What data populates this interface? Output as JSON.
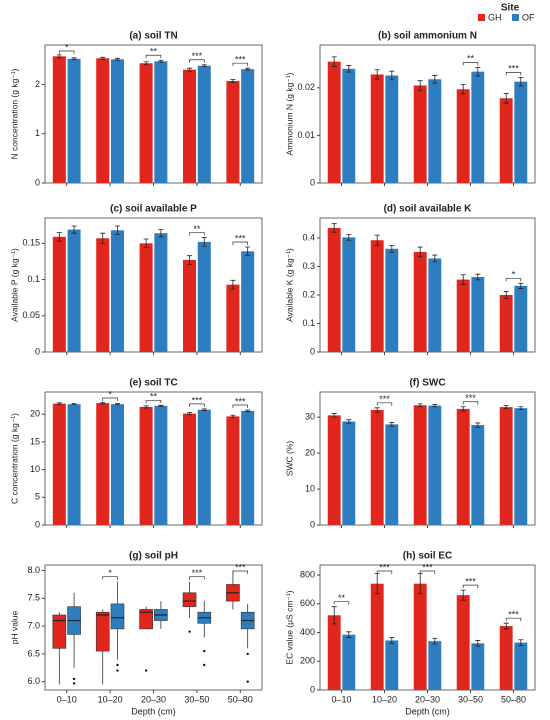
{
  "legend": {
    "title": "Site",
    "series": [
      {
        "name": "GH",
        "color": "#e0261d"
      },
      {
        "name": "OF",
        "color": "#2e7ebf"
      }
    ]
  },
  "categories": [
    "0–10",
    "10–20",
    "20–30",
    "30–50",
    "50–80"
  ],
  "xlabel": "Depth (cm)",
  "chart_data": [
    {
      "type": "bar",
      "title": "(a) soil TN",
      "ylabel": "N concentration (g kg⁻¹)",
      "ylim": [
        0,
        2.8
      ],
      "yticks": [
        0,
        1,
        2
      ],
      "series": [
        {
          "values": [
            2.57,
            2.53,
            2.43,
            2.3,
            2.07
          ],
          "errors": [
            0.03,
            0.02,
            0.03,
            0.03,
            0.03
          ]
        },
        {
          "values": [
            2.52,
            2.51,
            2.47,
            2.38,
            2.31
          ],
          "errors": [
            0.02,
            0.02,
            0.02,
            0.02,
            0.02
          ]
        }
      ],
      "annotations": [
        {
          "category": 0,
          "text": "*"
        },
        {
          "category": 2,
          "text": "**"
        },
        {
          "category": 3,
          "text": "***"
        },
        {
          "category": 4,
          "text": "***"
        }
      ]
    },
    {
      "type": "bar",
      "title": "(b) soil ammonium N",
      "ylabel": "Ammonium N (g kg⁻¹)",
      "ylim": [
        0,
        0.029
      ],
      "yticks": [
        0,
        0.01,
        0.02
      ],
      "series": [
        {
          "values": [
            0.0255,
            0.0228,
            0.0205,
            0.0197,
            0.0178
          ],
          "errors": [
            0.001,
            0.001,
            0.001,
            0.001,
            0.001
          ]
        },
        {
          "values": [
            0.024,
            0.0226,
            0.0218,
            0.0234,
            0.0213
          ],
          "errors": [
            0.0007,
            0.0009,
            0.0008,
            0.0009,
            0.0009
          ]
        }
      ],
      "annotations": [
        {
          "category": 3,
          "text": "**"
        },
        {
          "category": 4,
          "text": "***"
        }
      ]
    },
    {
      "type": "bar",
      "title": "(c) soil available P",
      "ylabel": "Available P (g kg⁻¹)",
      "ylim": [
        0,
        0.185
      ],
      "yticks": [
        0,
        0.05,
        0.1,
        0.15
      ],
      "series": [
        {
          "values": [
            0.159,
            0.157,
            0.15,
            0.127,
            0.093
          ],
          "errors": [
            0.006,
            0.007,
            0.006,
            0.006,
            0.006
          ]
        },
        {
          "values": [
            0.169,
            0.168,
            0.164,
            0.152,
            0.139
          ],
          "errors": [
            0.005,
            0.006,
            0.005,
            0.006,
            0.006
          ]
        }
      ],
      "annotations": [
        {
          "category": 3,
          "text": "**"
        },
        {
          "category": 4,
          "text": "***"
        }
      ]
    },
    {
      "type": "bar",
      "title": "(d) soil available K",
      "ylabel": "Available K (g kg⁻¹)",
      "ylim": [
        0,
        0.47
      ],
      "yticks": [
        0,
        0.1,
        0.2,
        0.3,
        0.4
      ],
      "series": [
        {
          "values": [
            0.435,
            0.392,
            0.351,
            0.254,
            0.2
          ],
          "errors": [
            0.015,
            0.018,
            0.017,
            0.017,
            0.012
          ]
        },
        {
          "values": [
            0.402,
            0.362,
            0.328,
            0.263,
            0.232
          ],
          "errors": [
            0.01,
            0.012,
            0.012,
            0.01,
            0.009
          ]
        }
      ],
      "annotations": [
        {
          "category": 4,
          "text": "*"
        }
      ]
    },
    {
      "type": "bar",
      "title": "(e) soil TC",
      "ylabel": "C concentration (g kg⁻¹)",
      "ylim": [
        0,
        24
      ],
      "yticks": [
        0,
        5,
        10,
        15,
        20
      ],
      "series": [
        {
          "values": [
            21.9,
            22.0,
            21.3,
            20.1,
            19.6
          ],
          "errors": [
            0.15,
            0.15,
            0.2,
            0.2,
            0.2
          ]
        },
        {
          "values": [
            21.8,
            21.8,
            21.5,
            20.8,
            20.6
          ],
          "errors": [
            0.1,
            0.1,
            0.1,
            0.15,
            0.15
          ]
        }
      ],
      "annotations": [
        {
          "category": 1,
          "text": "*"
        },
        {
          "category": 2,
          "text": "**"
        },
        {
          "category": 3,
          "text": "***"
        },
        {
          "category": 4,
          "text": "***"
        }
      ]
    },
    {
      "type": "bar",
      "title": "(f) SWC",
      "ylabel": "SWC (%)",
      "ylim": [
        0,
        37
      ],
      "yticks": [
        0,
        10,
        20,
        30
      ],
      "series": [
        {
          "values": [
            30.5,
            32.0,
            33.3,
            32.3,
            32.8
          ],
          "errors": [
            0.5,
            0.6,
            0.4,
            0.6,
            0.4
          ]
        },
        {
          "values": [
            28.8,
            28.0,
            33.2,
            27.8,
            32.5
          ],
          "errors": [
            0.5,
            0.5,
            0.3,
            0.6,
            0.4
          ]
        }
      ],
      "annotations": [
        {
          "category": 1,
          "text": "***"
        },
        {
          "category": 3,
          "text": "***"
        }
      ]
    },
    {
      "type": "box",
      "title": "(g) soil pH",
      "ylabel": "pH value",
      "ylim": [
        5.85,
        8.1
      ],
      "yticks": [
        {
          "value": 6,
          "label": "6.0"
        },
        6.5,
        {
          "value": 7,
          "label": "7.0"
        },
        7.5,
        {
          "value": 8,
          "label": "8.0"
        }
      ],
      "series": [
        {
          "boxes": [
            {
              "whisker_low": 5.95,
              "q1": 6.6,
              "median": 7.1,
              "q3": 7.2,
              "whisker_high": 7.25,
              "outliers": []
            },
            {
              "whisker_low": 5.95,
              "q1": 6.55,
              "median": 7.2,
              "q3": 7.25,
              "whisker_high": 7.3,
              "outliers": []
            },
            {
              "whisker_low": 6.95,
              "q1": 6.95,
              "median": 7.25,
              "q3": 7.3,
              "whisker_high": 7.35,
              "outliers": [
                6.2
              ]
            },
            {
              "whisker_low": 7.15,
              "q1": 7.35,
              "median": 7.45,
              "q3": 7.6,
              "whisker_high": 7.8,
              "outliers": [
                6.9
              ]
            },
            {
              "whisker_low": 7.3,
              "q1": 7.45,
              "median": 7.6,
              "q3": 7.75,
              "whisker_high": 8.0,
              "outliers": []
            }
          ]
        },
        {
          "boxes": [
            {
              "whisker_low": 6.25,
              "q1": 6.85,
              "median": 7.1,
              "q3": 7.35,
              "whisker_high": 7.6,
              "outliers": [
                6.05,
                5.97
              ]
            },
            {
              "whisker_low": 6.4,
              "q1": 6.95,
              "median": 7.15,
              "q3": 7.4,
              "whisker_high": 7.8,
              "outliers": [
                6.3,
                6.2
              ]
            },
            {
              "whisker_low": 6.95,
              "q1": 7.1,
              "median": 7.2,
              "q3": 7.3,
              "whisker_high": 7.45,
              "outliers": []
            },
            {
              "whisker_low": 6.8,
              "q1": 7.05,
              "median": 7.15,
              "q3": 7.25,
              "whisker_high": 7.45,
              "outliers": [
                6.55,
                6.3
              ]
            },
            {
              "whisker_low": 6.6,
              "q1": 6.95,
              "median": 7.1,
              "q3": 7.25,
              "whisker_high": 7.4,
              "outliers": [
                6.5,
                6.0
              ]
            }
          ]
        }
      ],
      "annotations": [
        {
          "category": 1,
          "text": "*"
        },
        {
          "category": 3,
          "text": "***"
        },
        {
          "category": 4,
          "text": "***"
        }
      ]
    },
    {
      "type": "bar",
      "title": "(h) soil EC",
      "ylabel": "EC value (μS cm⁻¹)",
      "ylim": [
        0,
        870
      ],
      "yticks": [
        0,
        200,
        400,
        600,
        800
      ],
      "series": [
        {
          "values": [
            520,
            740,
            740,
            660,
            445
          ],
          "errors": [
            60,
            70,
            70,
            35,
            20
          ]
        },
        {
          "values": [
            385,
            345,
            340,
            325,
            330
          ],
          "errors": [
            20,
            20,
            20,
            20,
            20
          ]
        }
      ],
      "annotations": [
        {
          "category": 0,
          "text": "**"
        },
        {
          "category": 1,
          "text": "***"
        },
        {
          "category": 2,
          "text": "***"
        },
        {
          "category": 3,
          "text": "***"
        },
        {
          "category": 4,
          "text": "***"
        }
      ]
    }
  ]
}
